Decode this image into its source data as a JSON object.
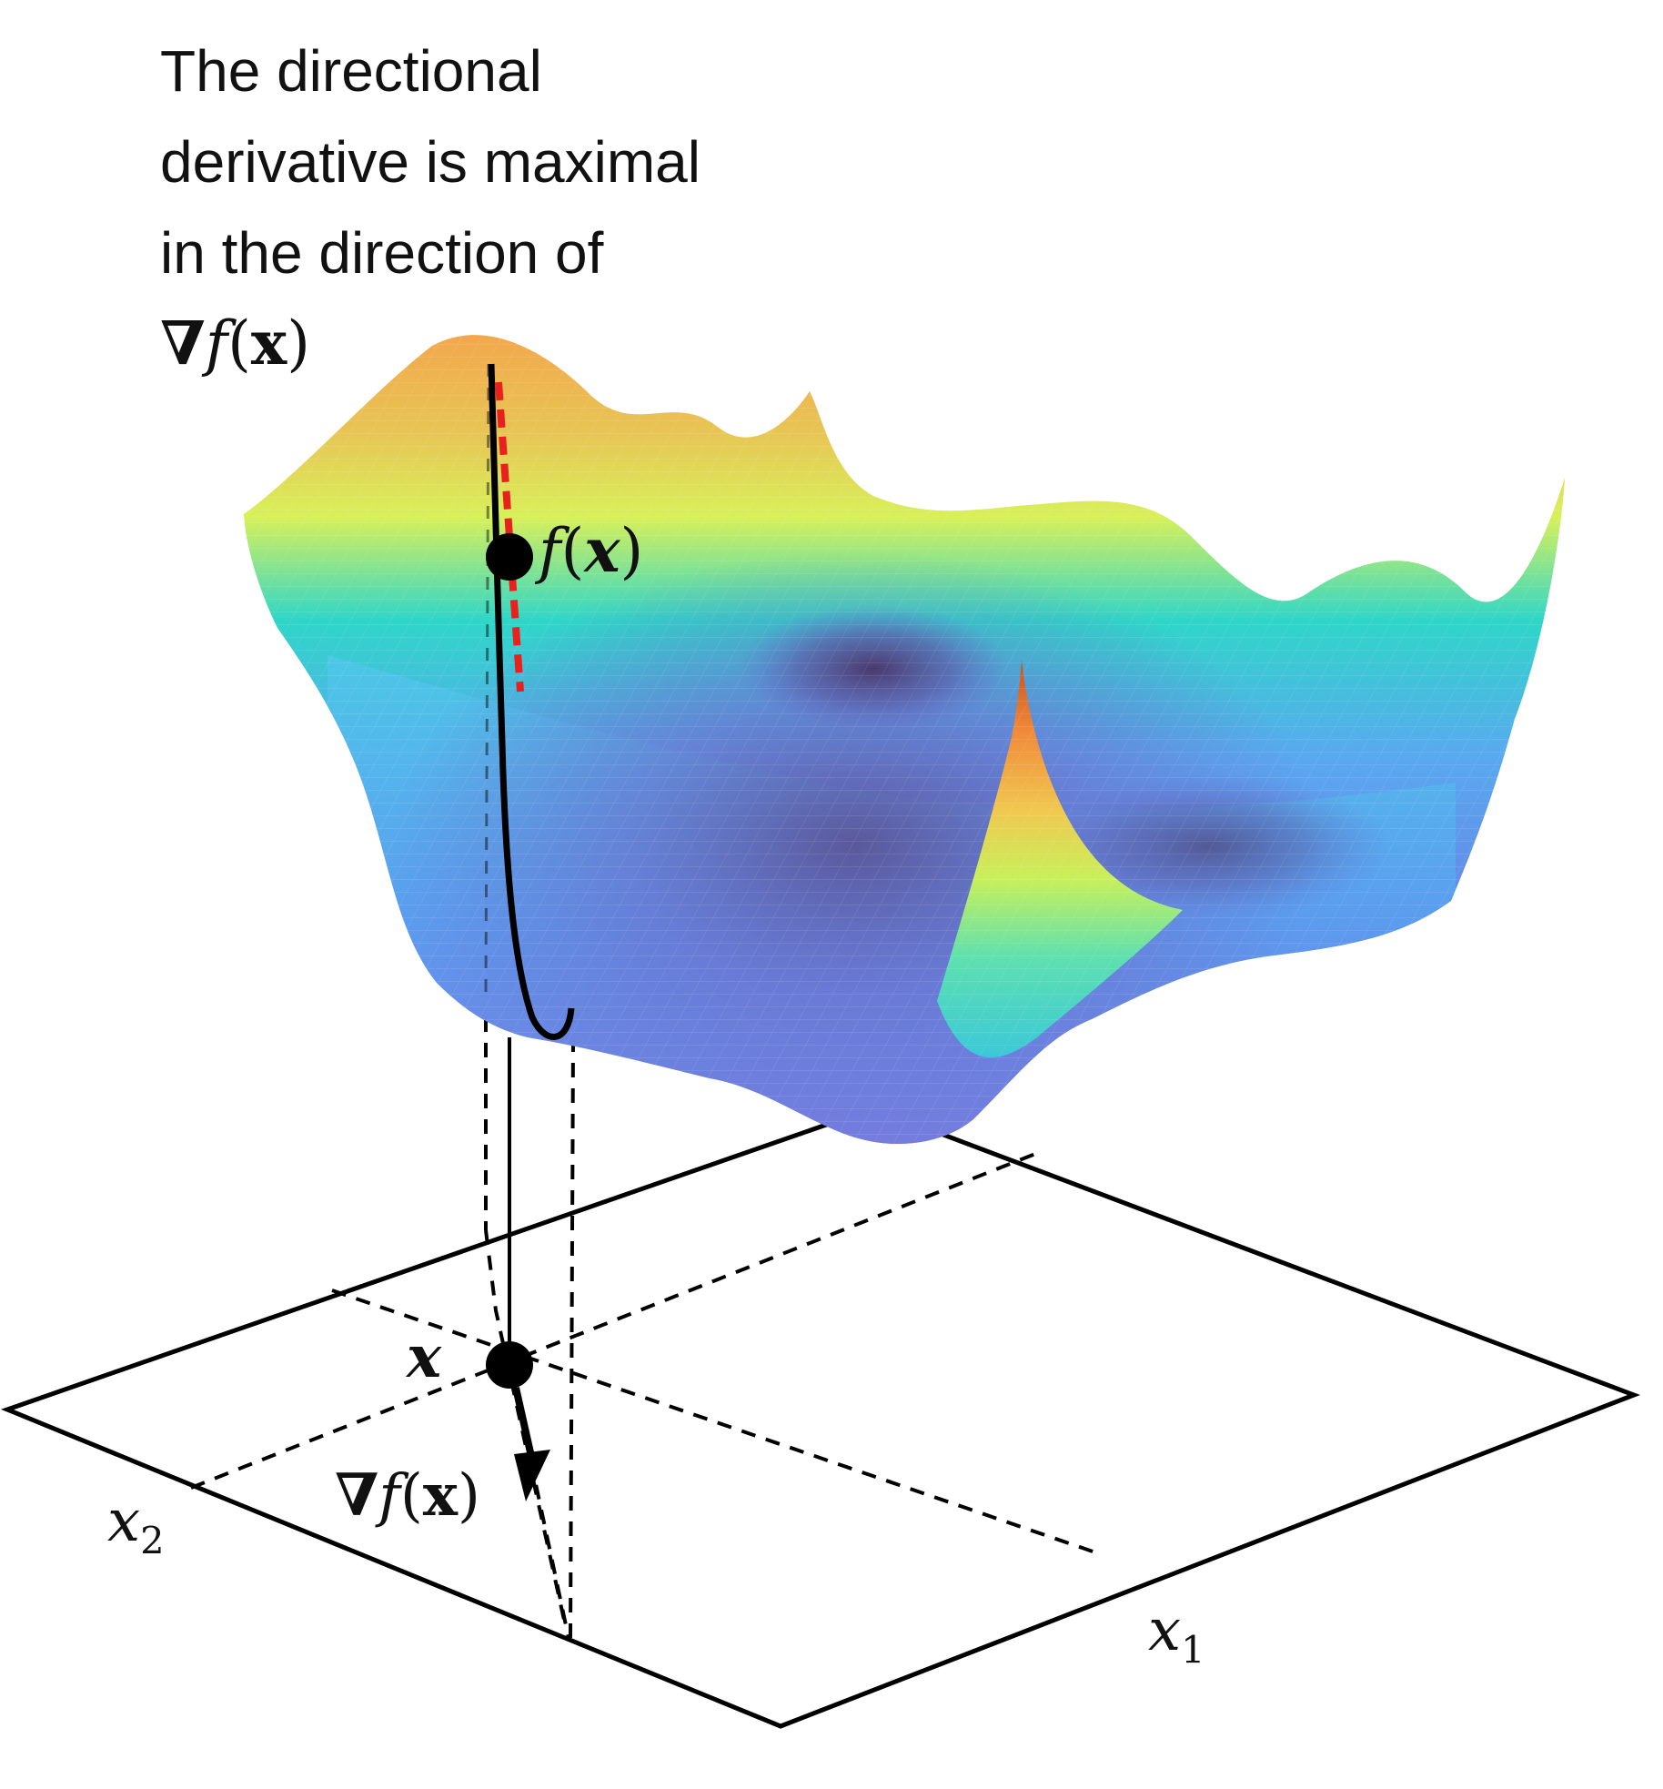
{
  "caption": {
    "line1": "The directional",
    "line2": "derivative is maximal",
    "line3": "in the direction of"
  },
  "labels": {
    "grad_symbol": "∇",
    "f": "f",
    "x_bold": "x",
    "x_italic": "x",
    "open_paren": "(",
    "close_paren": ")",
    "x1_base": "x",
    "x1_sub": "1",
    "x2_base": "x",
    "x2_sub": "2"
  },
  "colors": {
    "surface_low": "#5b4a8c",
    "surface_mid": "#5aa8f0",
    "surface_cyan": "#2fd6c8",
    "surface_yellow": "#d8f05a",
    "surface_high": "#f5a04a",
    "surface_peak": "#c8501e",
    "tangent_line": "#e8201e",
    "ink": "#000000"
  },
  "icons": [
    "gradient-arrow",
    "point-marker"
  ]
}
